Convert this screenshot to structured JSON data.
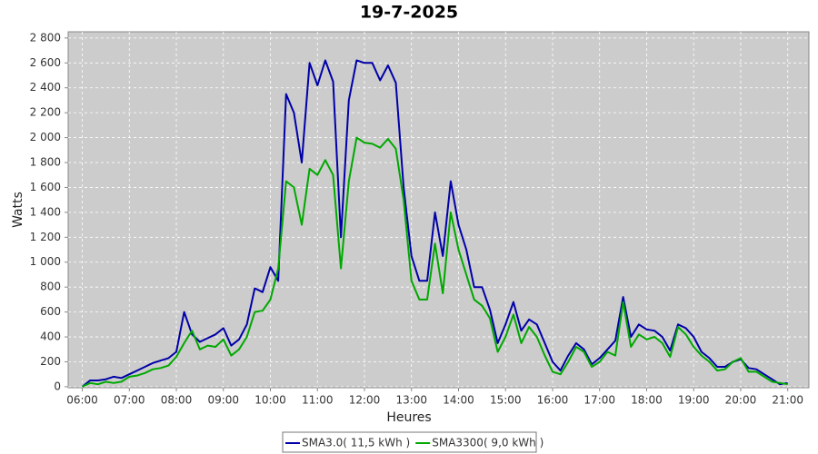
{
  "chart_data": {
    "type": "line",
    "title": "19-7-2025",
    "x_label": "Heures",
    "y_label": "Watts",
    "x": [
      360,
      370,
      380,
      390,
      400,
      410,
      420,
      430,
      440,
      450,
      460,
      470,
      480,
      490,
      500,
      510,
      520,
      530,
      540,
      550,
      560,
      570,
      580,
      590,
      600,
      610,
      620,
      630,
      640,
      650,
      660,
      670,
      680,
      690,
      700,
      710,
      720,
      730,
      740,
      750,
      760,
      770,
      780,
      790,
      800,
      810,
      820,
      830,
      840,
      850,
      860,
      870,
      880,
      890,
      900,
      910,
      920,
      930,
      940,
      950,
      960,
      970,
      980,
      990,
      1000,
      1010,
      1020,
      1030,
      1040,
      1050,
      1060,
      1070,
      1080,
      1090,
      1100,
      1110,
      1120,
      1130,
      1140,
      1150,
      1160,
      1170,
      1180,
      1190,
      1200,
      1210,
      1220,
      1230,
      1240,
      1250,
      1260
    ],
    "series": [
      {
        "name": "SMA3.0( 11,5 kWh )",
        "color": "#0000a8",
        "values": [
          0,
          50,
          50,
          60,
          80,
          70,
          100,
          130,
          160,
          190,
          210,
          230,
          280,
          600,
          420,
          360,
          390,
          420,
          470,
          330,
          380,
          500,
          790,
          760,
          960,
          850,
          2350,
          2200,
          1800,
          2600,
          2420,
          2620,
          2450,
          1200,
          2300,
          2620,
          2600,
          2600,
          2460,
          2580,
          2440,
          1600,
          1050,
          850,
          850,
          1400,
          1050,
          1650,
          1300,
          1100,
          800,
          800,
          620,
          350,
          500,
          680,
          450,
          540,
          500,
          350,
          200,
          130,
          250,
          350,
          300,
          180,
          230,
          300,
          370,
          720,
          400,
          500,
          460,
          450,
          400,
          290,
          500,
          470,
          400,
          280,
          230,
          160,
          160,
          200,
          220,
          150,
          140,
          100,
          60,
          20,
          30
        ]
      },
      {
        "name": "SMA3300( 9,0 kWh )",
        "color": "#00a800",
        "values": [
          0,
          30,
          20,
          40,
          30,
          40,
          80,
          90,
          110,
          140,
          150,
          170,
          240,
          350,
          450,
          300,
          330,
          320,
          380,
          250,
          300,
          400,
          600,
          610,
          700,
          950,
          1650,
          1600,
          1300,
          1750,
          1700,
          1820,
          1700,
          950,
          1650,
          2000,
          1960,
          1950,
          1920,
          1990,
          1910,
          1500,
          850,
          700,
          700,
          1150,
          750,
          1400,
          1100,
          900,
          700,
          650,
          550,
          280,
          400,
          580,
          350,
          480,
          400,
          250,
          120,
          100,
          200,
          320,
          280,
          160,
          200,
          280,
          250,
          680,
          320,
          420,
          380,
          400,
          350,
          240,
          480,
          420,
          320,
          250,
          200,
          130,
          140,
          200,
          230,
          120,
          120,
          80,
          40,
          30,
          20
        ]
      }
    ],
    "xlim": [
      342,
      1287
    ],
    "xticks": [
      {
        "value": 360,
        "label": "06:00"
      },
      {
        "value": 420,
        "label": "07:00"
      },
      {
        "value": 480,
        "label": "08:00"
      },
      {
        "value": 540,
        "label": "09:00"
      },
      {
        "value": 600,
        "label": "10:00"
      },
      {
        "value": 660,
        "label": "11:00"
      },
      {
        "value": 720,
        "label": "12:00"
      },
      {
        "value": 780,
        "label": "13:00"
      },
      {
        "value": 840,
        "label": "14:00"
      },
      {
        "value": 900,
        "label": "15:00"
      },
      {
        "value": 960,
        "label": "16:00"
      },
      {
        "value": 1020,
        "label": "17:00"
      },
      {
        "value": 1080,
        "label": "18:00"
      },
      {
        "value": 1140,
        "label": "19:00"
      },
      {
        "value": 1200,
        "label": "20:00"
      },
      {
        "value": 1260,
        "label": "21:00"
      }
    ],
    "ylim": [
      -8,
      2850
    ],
    "yticks": [
      0,
      200,
      400,
      600,
      800,
      {
        "value": 1000,
        "label": "1 000"
      },
      {
        "value": 1200,
        "label": "1 200"
      },
      {
        "value": 1400,
        "label": "1 400"
      },
      {
        "value": 1600,
        "label": "1 600"
      },
      {
        "value": 1800,
        "label": "1 800"
      },
      {
        "value": 2000,
        "label": "2 000"
      },
      {
        "value": 2200,
        "label": "2 200"
      },
      {
        "value": 2400,
        "label": "2 400"
      },
      {
        "value": 2600,
        "label": "2 600"
      },
      {
        "value": 2800,
        "label": "2 800"
      }
    ],
    "grid": true,
    "legend": "bottom"
  }
}
